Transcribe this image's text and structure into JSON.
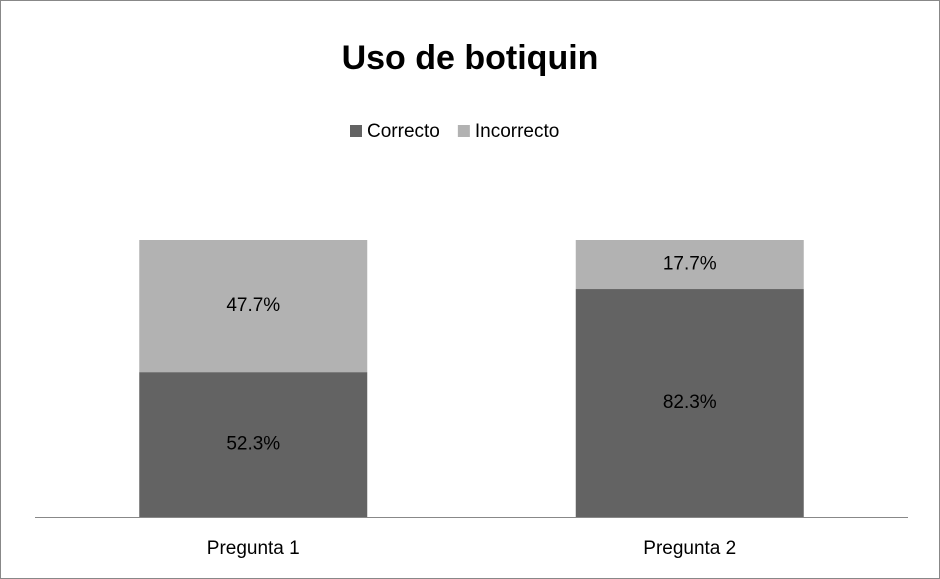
{
  "chart_data": {
    "type": "stacked_bar",
    "title": "Uso de botiquin",
    "categories": [
      "Pregunta 1",
      "Pregunta 2"
    ],
    "series": [
      {
        "name": "Correcto",
        "color": "#636363",
        "values": [
          52.3,
          82.3
        ],
        "value_labels": [
          "52.3%",
          "82.3%"
        ]
      },
      {
        "name": "Incorrecto",
        "color": "#b2b2b2",
        "values": [
          47.7,
          17.7
        ],
        "value_labels": [
          "47.7%",
          "17.7%"
        ]
      }
    ],
    "ylim": [
      0,
      100
    ],
    "legend": "top"
  }
}
